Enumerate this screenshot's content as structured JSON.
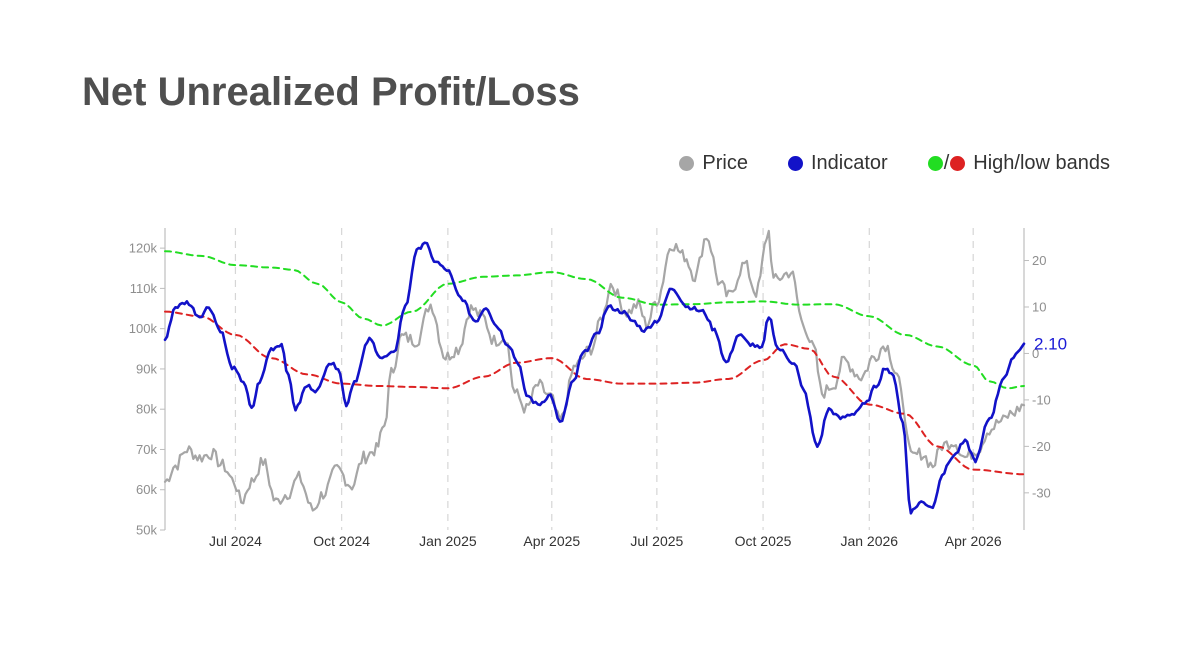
{
  "title": "Net Unrealized Profit/Loss",
  "legend": {
    "price": "Price",
    "indicator": "Indicator",
    "slash": "/",
    "bands": "High/low bands"
  },
  "colors": {
    "price": "#a6a6a6",
    "indicator": "#1212c8",
    "high_band": "#22dd22",
    "low_band": "#dd2222",
    "title": "#4f4f4f",
    "grid": "#d6d6d6"
  },
  "chart_data": {
    "type": "line",
    "x_type": "date",
    "x_range": [
      "2024-05-01",
      "2026-05-15"
    ],
    "x_ticks": [
      {
        "date": "2024-07-01",
        "label": "Jul 2024"
      },
      {
        "date": "2024-10-01",
        "label": "Oct 2024"
      },
      {
        "date": "2025-01-01",
        "label": "Jan 2025"
      },
      {
        "date": "2025-04-01",
        "label": "Apr 2025"
      },
      {
        "date": "2025-07-01",
        "label": "Jul 2025"
      },
      {
        "date": "2025-10-01",
        "label": "Oct 2025"
      },
      {
        "date": "2026-01-01",
        "label": "Jan 2026"
      },
      {
        "date": "2026-04-01",
        "label": "Apr 2026"
      }
    ],
    "y_left": {
      "range": [
        50000,
        125000
      ],
      "ticks": [
        {
          "value": 50000,
          "label": "50k"
        },
        {
          "value": 60000,
          "label": "60k"
        },
        {
          "value": 70000,
          "label": "70k"
        },
        {
          "value": 80000,
          "label": "80k"
        },
        {
          "value": 90000,
          "label": "90k"
        },
        {
          "value": 100000,
          "label": "100k"
        },
        {
          "value": 110000,
          "label": "110k"
        },
        {
          "value": 120000,
          "label": "120k"
        }
      ]
    },
    "y_right": {
      "range": [
        -38,
        27
      ],
      "ticks": [
        {
          "value": -30,
          "label": "-30"
        },
        {
          "value": -20,
          "label": "-20"
        },
        {
          "value": -10,
          "label": "-10"
        },
        {
          "value": 0,
          "label": "0"
        },
        {
          "value": 10,
          "label": "10"
        },
        {
          "value": 20,
          "label": "20"
        }
      ]
    },
    "grid": "vertical dashed",
    "legend_position": "top-right",
    "last_value_label": "2.10",
    "series": [
      {
        "name": "Price",
        "axis": "left",
        "style": "solid",
        "points": [
          [
            "2024-05-01",
            62000
          ],
          [
            "2024-05-10",
            66000
          ],
          [
            "2024-05-20",
            70000
          ],
          [
            "2024-05-31",
            68000
          ],
          [
            "2024-06-10",
            69000
          ],
          [
            "2024-06-20",
            66000
          ],
          [
            "2024-06-30",
            62000
          ],
          [
            "2024-07-06",
            57000
          ],
          [
            "2024-07-15",
            62000
          ],
          [
            "2024-07-25",
            67000
          ],
          [
            "2024-08-05",
            57000
          ],
          [
            "2024-08-15",
            59000
          ],
          [
            "2024-08-25",
            63000
          ],
          [
            "2024-09-06",
            55000
          ],
          [
            "2024-09-15",
            59000
          ],
          [
            "2024-09-27",
            65000
          ],
          [
            "2024-10-10",
            61000
          ],
          [
            "2024-10-20",
            68000
          ],
          [
            "2024-10-31",
            70000
          ],
          [
            "2024-11-07",
            76000
          ],
          [
            "2024-11-13",
            89000
          ],
          [
            "2024-11-22",
            98000
          ],
          [
            "2024-12-05",
            97000
          ],
          [
            "2024-12-17",
            106000
          ],
          [
            "2024-12-30",
            93000
          ],
          [
            "2025-01-10",
            95000
          ],
          [
            "2025-01-21",
            105000
          ],
          [
            "2025-01-31",
            103000
          ],
          [
            "2025-02-10",
            97000
          ],
          [
            "2025-02-20",
            98000
          ],
          [
            "2025-02-28",
            84000
          ],
          [
            "2025-03-10",
            80000
          ],
          [
            "2025-03-20",
            86000
          ],
          [
            "2025-03-31",
            83000
          ],
          [
            "2025-04-08",
            77000
          ],
          [
            "2025-04-22",
            91000
          ],
          [
            "2025-05-05",
            95000
          ],
          [
            "2025-05-15",
            103000
          ],
          [
            "2025-05-22",
            111000
          ],
          [
            "2025-06-05",
            104000
          ],
          [
            "2025-06-15",
            106000
          ],
          [
            "2025-06-22",
            101000
          ],
          [
            "2025-07-01",
            107000
          ],
          [
            "2025-07-14",
            121000
          ],
          [
            "2025-07-25",
            118000
          ],
          [
            "2025-08-03",
            113000
          ],
          [
            "2025-08-13",
            123000
          ],
          [
            "2025-08-25",
            111000
          ],
          [
            "2025-09-01",
            108000
          ],
          [
            "2025-09-15",
            116000
          ],
          [
            "2025-09-25",
            109000
          ],
          [
            "2025-10-06",
            124000
          ],
          [
            "2025-10-10",
            112000
          ],
          [
            "2025-10-25",
            114000
          ],
          [
            "2025-11-05",
            101000
          ],
          [
            "2025-11-14",
            95000
          ],
          [
            "2025-11-21",
            84000
          ],
          [
            "2025-12-01",
            86000
          ],
          [
            "2025-12-10",
            92000
          ],
          [
            "2025-12-25",
            88000
          ],
          [
            "2026-01-05",
            93000
          ],
          [
            "2026-01-15",
            96000
          ],
          [
            "2026-01-25",
            89000
          ],
          [
            "2026-02-01",
            78000
          ],
          [
            "2026-02-06",
            68000
          ],
          [
            "2026-02-15",
            69000
          ],
          [
            "2026-02-25",
            66000
          ],
          [
            "2026-03-05",
            71000
          ],
          [
            "2026-03-15",
            72000
          ],
          [
            "2026-03-25",
            68000
          ],
          [
            "2026-04-05",
            70000
          ],
          [
            "2026-04-15",
            75000
          ],
          [
            "2026-04-25",
            77000
          ],
          [
            "2026-05-05",
            79000
          ],
          [
            "2026-05-15",
            81000
          ]
        ]
      },
      {
        "name": "Indicator",
        "axis": "right",
        "style": "solid",
        "points": [
          [
            "2024-05-01",
            3
          ],
          [
            "2024-05-10",
            10
          ],
          [
            "2024-05-20",
            11
          ],
          [
            "2024-05-31",
            8
          ],
          [
            "2024-06-08",
            10
          ],
          [
            "2024-06-18",
            5
          ],
          [
            "2024-06-28",
            -3
          ],
          [
            "2024-07-08",
            -6
          ],
          [
            "2024-07-15",
            -12
          ],
          [
            "2024-07-22",
            -6
          ],
          [
            "2024-08-01",
            1
          ],
          [
            "2024-08-10",
            2
          ],
          [
            "2024-08-16",
            -5
          ],
          [
            "2024-08-22",
            -12
          ],
          [
            "2024-09-01",
            -7
          ],
          [
            "2024-09-10",
            -8
          ],
          [
            "2024-09-20",
            -2
          ],
          [
            "2024-09-28",
            -3
          ],
          [
            "2024-10-05",
            -11
          ],
          [
            "2024-10-12",
            -6
          ],
          [
            "2024-10-25",
            3
          ],
          [
            "2024-11-05",
            -1
          ],
          [
            "2024-11-15",
            0
          ],
          [
            "2024-11-25",
            10
          ],
          [
            "2024-12-05",
            22
          ],
          [
            "2024-12-12",
            24
          ],
          [
            "2024-12-20",
            20
          ],
          [
            "2024-12-31",
            18
          ],
          [
            "2025-01-12",
            12
          ],
          [
            "2025-01-25",
            7
          ],
          [
            "2025-02-03",
            10
          ],
          [
            "2025-02-12",
            6
          ],
          [
            "2025-02-22",
            2
          ],
          [
            "2025-03-03",
            -2
          ],
          [
            "2025-03-10",
            -9
          ],
          [
            "2025-03-20",
            -11
          ],
          [
            "2025-03-31",
            -9
          ],
          [
            "2025-04-08",
            -15
          ],
          [
            "2025-04-20",
            -6
          ],
          [
            "2025-04-28",
            0
          ],
          [
            "2025-05-10",
            4
          ],
          [
            "2025-05-20",
            10
          ],
          [
            "2025-06-01",
            9
          ],
          [
            "2025-06-10",
            7
          ],
          [
            "2025-06-20",
            5
          ],
          [
            "2025-07-01",
            7
          ],
          [
            "2025-07-14",
            14
          ],
          [
            "2025-07-28",
            10
          ],
          [
            "2025-08-10",
            9
          ],
          [
            "2025-08-20",
            5
          ],
          [
            "2025-08-30",
            -2
          ],
          [
            "2025-09-10",
            4
          ],
          [
            "2025-09-20",
            2
          ],
          [
            "2025-09-30",
            1
          ],
          [
            "2025-10-06",
            8
          ],
          [
            "2025-10-14",
            1
          ],
          [
            "2025-10-28",
            -2
          ],
          [
            "2025-11-05",
            -8
          ],
          [
            "2025-11-17",
            -20
          ],
          [
            "2025-11-27",
            -12
          ],
          [
            "2025-12-07",
            -14
          ],
          [
            "2025-12-17",
            -13
          ],
          [
            "2025-12-28",
            -11
          ],
          [
            "2026-01-07",
            -7
          ],
          [
            "2026-01-15",
            -3
          ],
          [
            "2026-01-22",
            -5
          ],
          [
            "2026-01-30",
            -15
          ],
          [
            "2026-02-06",
            -34
          ],
          [
            "2026-02-15",
            -32
          ],
          [
            "2026-02-25",
            -33
          ],
          [
            "2026-03-05",
            -26
          ],
          [
            "2026-03-15",
            -22
          ],
          [
            "2026-03-25",
            -19
          ],
          [
            "2026-04-03",
            -23
          ],
          [
            "2026-04-15",
            -14
          ],
          [
            "2026-04-28",
            -5
          ],
          [
            "2026-05-08",
            0
          ],
          [
            "2026-05-15",
            2.1
          ]
        ]
      },
      {
        "name": "High band",
        "axis": "right",
        "style": "dashed",
        "points": [
          [
            "2024-05-01",
            22
          ],
          [
            "2024-06-01",
            21
          ],
          [
            "2024-07-01",
            19
          ],
          [
            "2024-08-01",
            18.5
          ],
          [
            "2024-08-20",
            18
          ],
          [
            "2024-09-10",
            15
          ],
          [
            "2024-10-01",
            11
          ],
          [
            "2024-10-20",
            7.5
          ],
          [
            "2024-11-05",
            6
          ],
          [
            "2024-12-01",
            9
          ],
          [
            "2025-01-01",
            15
          ],
          [
            "2025-02-01",
            16.5
          ],
          [
            "2025-03-01",
            16.8
          ],
          [
            "2025-04-01",
            17.5
          ],
          [
            "2025-05-01",
            16
          ],
          [
            "2025-06-01",
            12
          ],
          [
            "2025-07-01",
            10.5
          ],
          [
            "2025-08-01",
            10.6
          ],
          [
            "2025-09-01",
            11
          ],
          [
            "2025-10-01",
            11.2
          ],
          [
            "2025-11-01",
            10.5
          ],
          [
            "2025-12-01",
            10.6
          ],
          [
            "2026-01-01",
            8
          ],
          [
            "2026-02-01",
            4
          ],
          [
            "2026-03-01",
            1.5
          ],
          [
            "2026-04-01",
            -2.5
          ],
          [
            "2026-04-15",
            -6
          ],
          [
            "2026-05-01",
            -7.5
          ],
          [
            "2026-05-15",
            -7
          ]
        ]
      },
      {
        "name": "Low band",
        "axis": "right",
        "style": "dashed",
        "points": [
          [
            "2024-05-01",
            9
          ],
          [
            "2024-06-01",
            8
          ],
          [
            "2024-07-01",
            4
          ],
          [
            "2024-08-01",
            -1
          ],
          [
            "2024-09-01",
            -4.5
          ],
          [
            "2024-10-01",
            -6.5
          ],
          [
            "2024-11-01",
            -7
          ],
          [
            "2024-12-01",
            -7.2
          ],
          [
            "2025-01-01",
            -7.5
          ],
          [
            "2025-02-01",
            -5
          ],
          [
            "2025-03-01",
            -2
          ],
          [
            "2025-04-01",
            -1
          ],
          [
            "2025-05-01",
            -5.5
          ],
          [
            "2025-06-01",
            -6.5
          ],
          [
            "2025-07-01",
            -6.5
          ],
          [
            "2025-08-01",
            -6.3
          ],
          [
            "2025-09-01",
            -5.5
          ],
          [
            "2025-10-01",
            -1.5
          ],
          [
            "2025-10-20",
            2
          ],
          [
            "2025-11-10",
            1
          ],
          [
            "2025-12-01",
            -5
          ],
          [
            "2026-01-01",
            -11
          ],
          [
            "2026-02-01",
            -13
          ],
          [
            "2026-03-01",
            -20
          ],
          [
            "2026-04-01",
            -25
          ],
          [
            "2026-05-15",
            -26
          ]
        ]
      }
    ]
  }
}
